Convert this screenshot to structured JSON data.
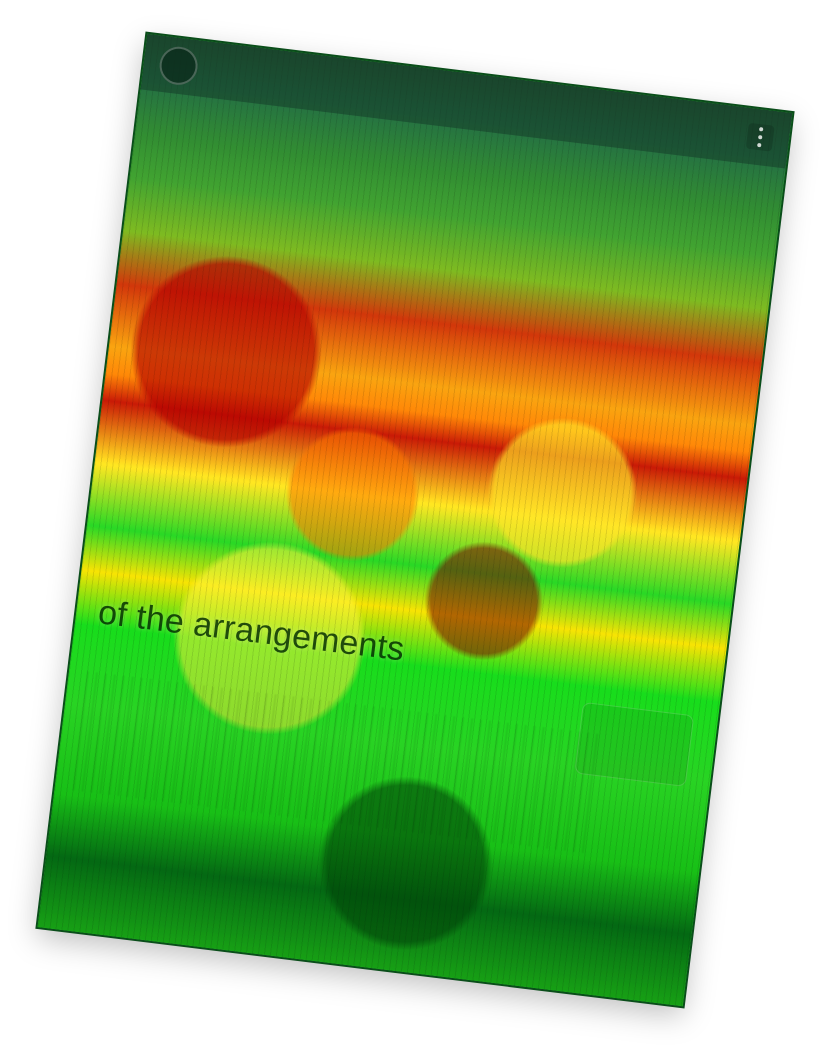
{
  "caption": {
    "headline": "of the arrangements"
  },
  "icons": {
    "avatar": "avatar",
    "more": "more-vertical-icon"
  }
}
